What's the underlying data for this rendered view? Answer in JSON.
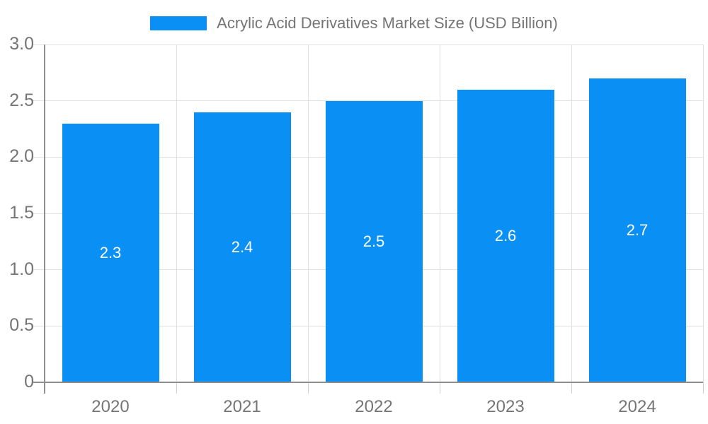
{
  "chart_data": {
    "type": "bar",
    "title": "Acrylic Acid Derivatives Market Size (USD Billion)",
    "legend": [
      "Acrylic Acid Derivatives Market Size (USD Billion)"
    ],
    "legend_position": "top",
    "categories": [
      "2020",
      "2021",
      "2022",
      "2023",
      "2024"
    ],
    "values": [
      2.3,
      2.4,
      2.5,
      2.6,
      2.7
    ],
    "value_labels": [
      "2.3",
      "2.4",
      "2.5",
      "2.6",
      "2.7"
    ],
    "xlabel": "",
    "ylabel": "",
    "ylim": [
      0,
      3
    ],
    "ytick_step": 0.5,
    "ytick_labels": [
      "0",
      "0.5",
      "1.0",
      "1.5",
      "2.0",
      "2.5",
      "3.0"
    ],
    "grid": true
  },
  "colors": {
    "bar": "#0a90f5",
    "grid_line": "#e0e0e0",
    "axis_line": "#8f8f8f",
    "tick_below_axis": "#cfcfcf",
    "label_text": "#757575",
    "value_text": "#ffffff",
    "background": "#ffffff"
  }
}
